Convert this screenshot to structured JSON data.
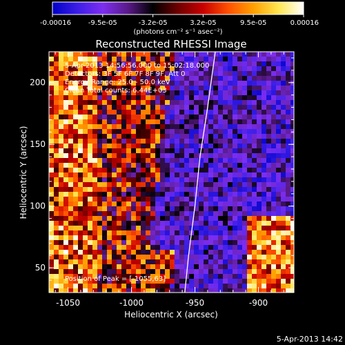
{
  "colorbar": {
    "tick_labels": [
      "-0.00016",
      "-9.5e-05",
      "-3.2e-05",
      "3.2e-05",
      "9.5e-05",
      "0.00016"
    ],
    "units_label": "(photons cm⁻² s⁻¹ asec⁻²)",
    "colors": [
      "#0000c8",
      "#3c1ee6",
      "#7d2ef0",
      "#5a1a8a",
      "#000000",
      "#6e0000",
      "#c80000",
      "#ff5000",
      "#ffa000",
      "#ffe650",
      "#ffffff"
    ]
  },
  "plot": {
    "title": "Reconstructed RHESSI Image",
    "xlabel": "Heliocentric X (arcsec)",
    "ylabel": "Heliocentric Y (arcsec)",
    "x_ticks": [
      "-1050",
      "-1000",
      "-950",
      "-900"
    ],
    "y_ticks": [
      "50",
      "100",
      "150",
      "200"
    ],
    "annotations": [
      "5-Apr-2013 14:56:56.000 to 15:02:18.000",
      "Detectors: 3F 5F 6F 7F 8F 9F, Att 0",
      "Energy Range: 25.0 - 50.0 keV",
      "Clean    Total counts: 6.44E+03"
    ],
    "peak_label": "Position of Peak = [-1055,63]"
  },
  "footer": {
    "timestamp": "5-Apr-2013 14:42"
  },
  "chart_data": {
    "type": "heatmap",
    "title": "Reconstructed RHESSI Image",
    "xlabel": "Heliocentric X (arcsec)",
    "ylabel": "Heliocentric Y (arcsec)",
    "xlim": [
      -1065,
      -872
    ],
    "ylim": [
      30,
      225
    ],
    "x_ticks": [
      -1050,
      -1000,
      -950,
      -900
    ],
    "y_ticks": [
      50,
      100,
      150,
      200
    ],
    "colorbar_range": [
      -0.00016,
      0.00016
    ],
    "peak_position": [
      -1055,
      63
    ],
    "limb_curve": [
      [
        -958,
        30
      ],
      [
        -955,
        60
      ],
      [
        -950,
        100
      ],
      [
        -946,
        140
      ],
      [
        -940,
        180
      ],
      [
        -934,
        225
      ]
    ]
  }
}
